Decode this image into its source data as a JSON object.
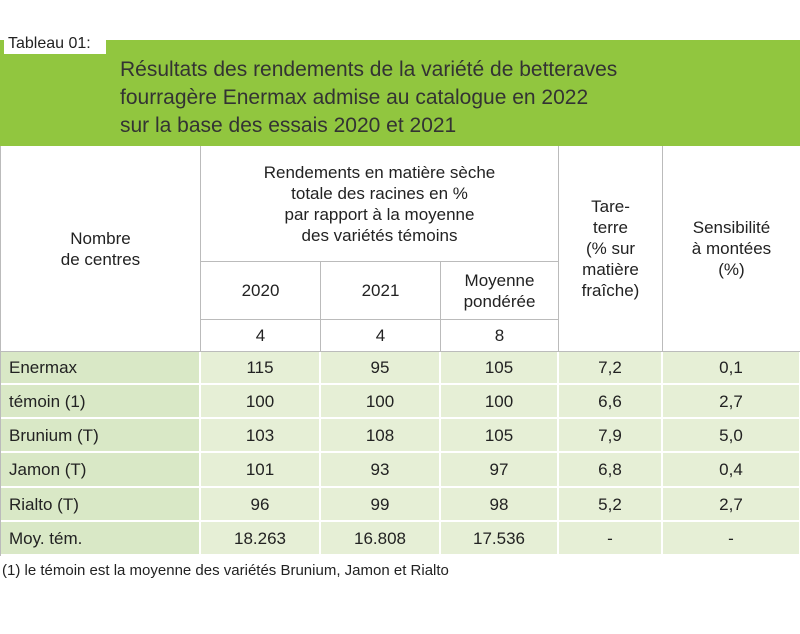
{
  "label": "Tableau 01:",
  "title": [
    "Résultats des rendements de la variété de betteraves",
    "fourragère Enermax admise au catalogue en 2022",
    "sur la base des essais 2020 et 2021"
  ],
  "table": {
    "header": {
      "centres": [
        "Nombre",
        "de centres"
      ],
      "group": [
        "Rendements en matière sèche",
        "totale des racines en %",
        "par rapport à la moyenne",
        "des variétés témoins"
      ],
      "tare": [
        "Tare-",
        "terre",
        "(% sur",
        "matière",
        "fraîche)"
      ],
      "sens": [
        "Sensibilité",
        "à montées",
        "(%)"
      ],
      "years": [
        [
          "2020"
        ],
        [
          "2021"
        ],
        [
          "Moyenne",
          "pondérée"
        ]
      ],
      "counts": [
        "4",
        "4",
        "8"
      ]
    },
    "rows": [
      [
        "Enermax",
        "115",
        "95",
        "105",
        "7,2",
        "0,1"
      ],
      [
        "témoin (1)",
        "100",
        "100",
        "100",
        "6,6",
        "2,7"
      ],
      [
        "Brunium (T)",
        "103",
        "108",
        "105",
        "7,9",
        "5,0"
      ],
      [
        "Jamon (T)",
        "101",
        "93",
        "97",
        "6,8",
        "0,4"
      ],
      [
        "Rialto (T)",
        "96",
        "99",
        "98",
        "5,2",
        "2,7"
      ],
      [
        "Moy. tém.",
        "18.263",
        "16.808",
        "17.536",
        "-",
        "-"
      ]
    ]
  },
  "footnote": "(1) le témoin est la moyenne des variétés Brunium, Jamon et Rialto"
}
